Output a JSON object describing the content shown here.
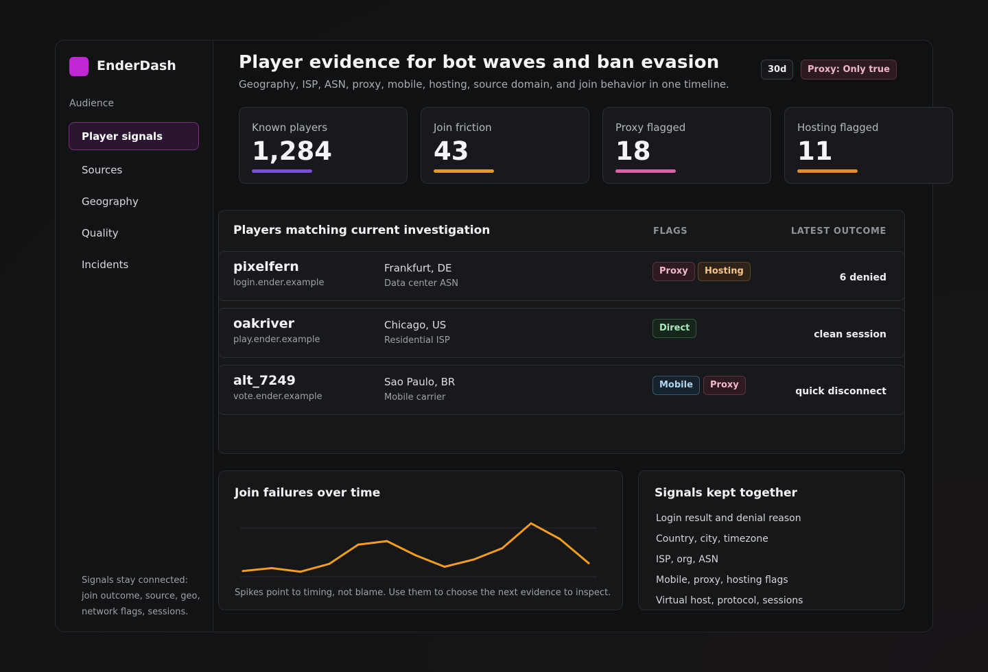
{
  "app": {
    "name": "EnderDash",
    "accent": "#c026d3"
  },
  "sidebar": {
    "section": "Audience",
    "active": "Player signals",
    "items": [
      "Sources",
      "Geography",
      "Quality",
      "Incidents"
    ],
    "note": "Signals stay connected: join outcome, source, geo, network flags, sessions."
  },
  "header": {
    "title": "Player evidence for bot waves and ban evasion",
    "subtitle": "Geography, ISP, ASN, proxy, mobile, hosting, source domain, and join behavior in one timeline.",
    "range_chip": "30d",
    "filter_chip": "Proxy: Only true"
  },
  "kpis": [
    {
      "label": "Known players",
      "value": "1,284",
      "color": "#7c4ddb"
    },
    {
      "label": "Join friction",
      "value": "43",
      "color": "#e39b1c"
    },
    {
      "label": "Proxy flagged",
      "value": "18",
      "color": "#de5fa6"
    },
    {
      "label": "Hosting flagged",
      "value": "11",
      "color": "#e58a2e"
    }
  ],
  "table": {
    "title": "Players matching current investigation",
    "col_flags": "FLAGS",
    "col_outcome": "LATEST OUTCOME",
    "rows": [
      {
        "name": "pixelfern",
        "domain": "login.ender.example",
        "location": "Frankfurt, DE",
        "network": "Data center ASN",
        "flags": [
          "Proxy",
          "Hosting"
        ],
        "outcome": "6 denied"
      },
      {
        "name": "oakriver",
        "domain": "play.ender.example",
        "location": "Chicago, US",
        "network": "Residential ISP",
        "flags": [
          "Direct"
        ],
        "outcome": "clean session"
      },
      {
        "name": "alt_7249",
        "domain": "vote.ender.example",
        "location": "Sao Paulo, BR",
        "network": "Mobile carrier",
        "flags": [
          "Mobile",
          "Proxy"
        ],
        "outcome": "quick disconnect"
      }
    ]
  },
  "chart_panel": {
    "title": "Join failures over time",
    "caption": "Spikes point to timing, not blame. Use them to choose the next evidence to inspect."
  },
  "chart_data": {
    "type": "line",
    "title": "Join failures over time",
    "xlabel": "",
    "ylabel": "",
    "x": [
      1,
      2,
      3,
      4,
      5,
      6,
      7,
      8,
      9,
      10,
      11,
      12,
      13
    ],
    "series": [
      {
        "values": [
          8,
          12,
          7,
          18,
          45,
          50,
          30,
          14,
          24,
          40,
          75,
          53,
          19
        ],
        "color": "#f39c1e"
      }
    ],
    "ylim": [
      0,
      80
    ],
    "grid": true
  },
  "signals": {
    "title": "Signals kept together",
    "items": [
      "Login result and denial reason",
      "Country, city, timezone",
      "ISP, org, ASN",
      "Mobile, proxy, hosting flags",
      "Virtual host, protocol, sessions"
    ]
  }
}
